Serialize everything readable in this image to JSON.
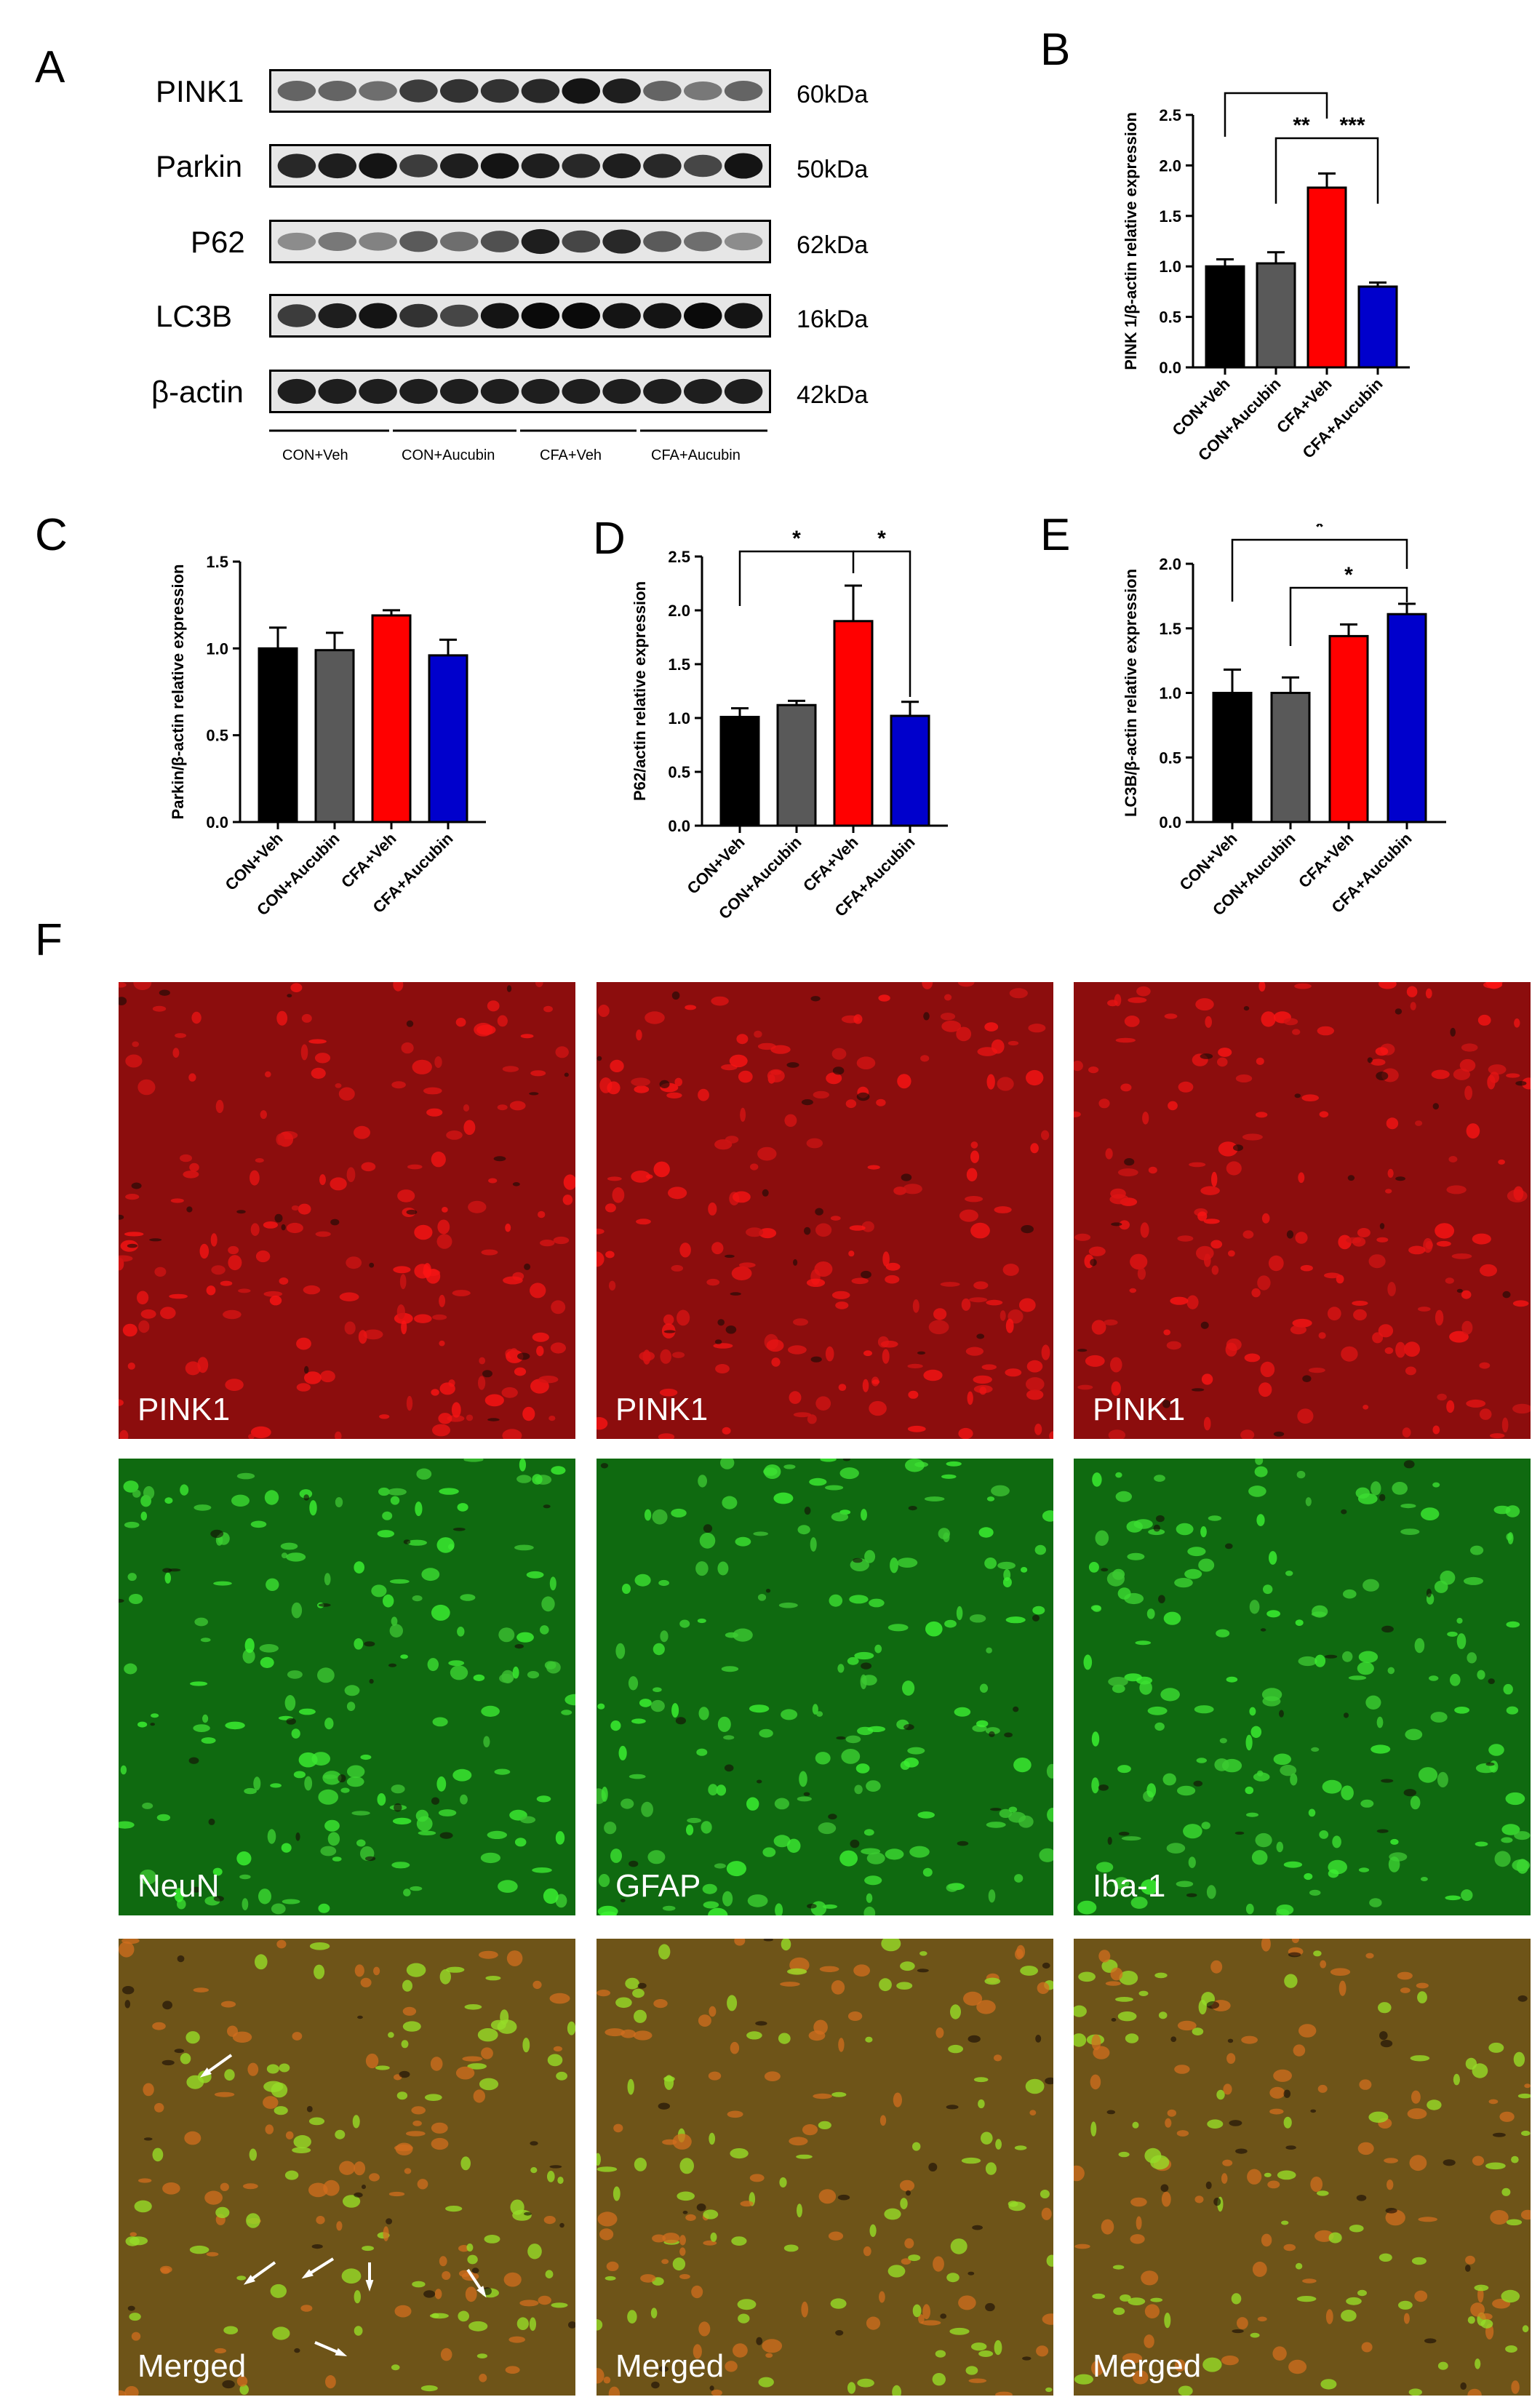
{
  "panels": {
    "A": "A",
    "B": "B",
    "C": "C",
    "D": "D",
    "E": "E",
    "F": "F"
  },
  "western_blot": {
    "rows": [
      {
        "protein": "PINK1",
        "size": "60kDa"
      },
      {
        "protein": "Parkin",
        "size": "50kDa"
      },
      {
        "protein": "P62",
        "size": "62kDa"
      },
      {
        "protein": "LC3B",
        "size": "16kDa"
      },
      {
        "protein": "β-actin",
        "size": "42kDa"
      }
    ],
    "groups": [
      "CON+Veh",
      "CON+Aucubin",
      "CFA+Veh",
      "CFA+Aucubin"
    ]
  },
  "colors": {
    "CON+Veh": "#000000",
    "CON+Aucubin": "#595959",
    "CFA+Veh": "#ff0000",
    "CFA+Aucubin": "#0000cc",
    "red_channel": "#b51414",
    "green_channel": "#1ea31e"
  },
  "chart_data": [
    {
      "panel": "B",
      "type": "bar",
      "categories": [
        "CON+Veh",
        "CON+Aucubin",
        "CFA+Veh",
        "CFA+Aucubin"
      ],
      "values": [
        1.0,
        1.03,
        1.78,
        0.8
      ],
      "errors": [
        0.07,
        0.11,
        0.14,
        0.04
      ],
      "ylabel": "PINK 1/β-actin relative expression",
      "ylim": [
        0,
        2.5
      ],
      "yticks": [
        "0.0",
        "0.5",
        "1.0",
        "1.5",
        "2.0",
        "2.5"
      ],
      "significance": [
        {
          "from": 0,
          "to": 2,
          "label": "**"
        },
        {
          "from": 1,
          "to": 2,
          "label": "**"
        },
        {
          "from": 2,
          "to": 3,
          "label": "***"
        }
      ]
    },
    {
      "panel": "C",
      "type": "bar",
      "categories": [
        "CON+Veh",
        "CON+Aucubin",
        "CFA+Veh",
        "CFA+Aucubin"
      ],
      "values": [
        1.0,
        0.99,
        1.19,
        0.96
      ],
      "errors": [
        0.12,
        0.1,
        0.03,
        0.09
      ],
      "ylabel": "Parkin/β-actin relative expression",
      "ylim": [
        0,
        1.5
      ],
      "yticks": [
        "0.0",
        "0.5",
        "1.0",
        "1.5"
      ],
      "significance": []
    },
    {
      "panel": "D",
      "type": "bar",
      "categories": [
        "CON+Veh",
        "CON+Aucubin",
        "CFA+Veh",
        "CFA+Aucubin"
      ],
      "values": [
        1.01,
        1.12,
        1.9,
        1.02
      ],
      "errors": [
        0.08,
        0.04,
        0.33,
        0.13
      ],
      "ylabel": "P62/actin relative expression",
      "ylim": [
        0,
        2.5
      ],
      "yticks": [
        "0.0",
        "0.5",
        "1.0",
        "1.5",
        "2.0",
        "2.5"
      ],
      "significance": [
        {
          "from": 0,
          "to": 2,
          "label": "*"
        },
        {
          "from": 2,
          "to": 3,
          "label": "*"
        }
      ]
    },
    {
      "panel": "E",
      "type": "bar",
      "categories": [
        "CON+Veh",
        "CON+Aucubin",
        "CFA+Veh",
        "CFA+Aucubin"
      ],
      "values": [
        1.0,
        1.0,
        1.44,
        1.61
      ],
      "errors": [
        0.18,
        0.12,
        0.09,
        0.08
      ],
      "ylabel": "LC3B/β-actin relative expression",
      "ylim": [
        0,
        2.0
      ],
      "yticks": [
        "0.0",
        "0.5",
        "1.0",
        "1.5",
        "2.0"
      ],
      "significance": [
        {
          "from": 0,
          "to": 3,
          "label": "*"
        },
        {
          "from": 1,
          "to": 3,
          "label": "*"
        }
      ]
    }
  ],
  "microscopy": {
    "rows": [
      {
        "channel": "red",
        "labels": [
          "PINK1",
          "PINK1",
          "PINK1"
        ]
      },
      {
        "channel": "green",
        "labels": [
          "NeuN",
          "GFAP",
          "Iba-1"
        ]
      },
      {
        "channel": "merged",
        "labels": [
          "Merged",
          "Merged",
          "Merged"
        ]
      }
    ]
  }
}
